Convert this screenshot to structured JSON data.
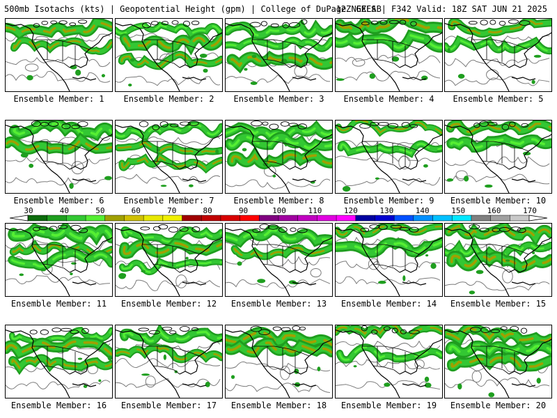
{
  "header": {
    "left": "500mb Isotachs (kts) | Geopotential Height (gpm) | College of DuPage NEXLAB",
    "right": "12Z GEFS | F342 Valid: 18Z SAT JUN 21 2025"
  },
  "member_label": "Ensemble Member:",
  "members": [
    "1",
    "2",
    "3",
    "4",
    "5",
    "6",
    "7",
    "8",
    "9",
    "10",
    "11",
    "12",
    "13",
    "14",
    "15",
    "16",
    "17",
    "18",
    "19",
    "20"
  ],
  "colorbar": {
    "ticks": [
      "30",
      "40",
      "50",
      "60",
      "70",
      "80",
      "90",
      "100",
      "110",
      "120",
      "130",
      "140",
      "150",
      "160",
      "170"
    ],
    "colors": [
      "#0c6b0c",
      "#1f9e1f",
      "#33c733",
      "#55ee33",
      "#a0a000",
      "#d0c000",
      "#e8e800",
      "#f0f000",
      "#a00000",
      "#c00000",
      "#d80000",
      "#ff0000",
      "#800080",
      "#a000a0",
      "#c000c0",
      "#e000e0",
      "#ff00ff",
      "#0000a0",
      "#0000d0",
      "#0050ff",
      "#0090ff",
      "#00c0ff",
      "#00e8ff",
      "#808080",
      "#a0a0a0",
      "#c8c8c8"
    ]
  }
}
